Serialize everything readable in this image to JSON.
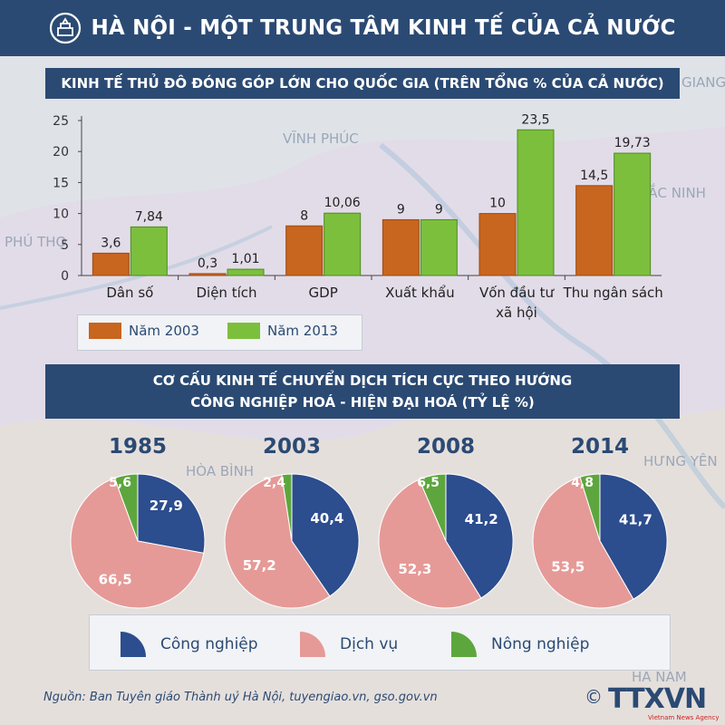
{
  "header": {
    "title": "HÀ NỘI - MỘT TRUNG TÂM KINH TẾ CỦA CẢ NƯỚC",
    "logo_icon": "hanoi-emblem-icon"
  },
  "colors": {
    "header_bg": "#2b4a73",
    "series_2003": "#c8651e",
    "series_2013": "#7cbf3d",
    "cong_nghiep": "#2c4d8e",
    "dich_vu": "#e59a97",
    "nong_nghiep": "#5da63e"
  },
  "map_labels": [
    "VĨNH PHÚC",
    "BẮC NINH",
    "PHÚ THỌ",
    "HÒA BÌNH",
    "HƯNG YÊN",
    "HÀ NAM",
    "GIANG"
  ],
  "chart_data": [
    {
      "type": "bar",
      "title": "KINH TẾ THỦ ĐÔ ĐÓNG GÓP LỚN CHO QUỐC GIA (TRÊN TỔNG % CỦA CẢ NƯỚC)",
      "categories": [
        "Dân số",
        "Diện tích",
        "GDP",
        "Xuất khẩu",
        "Vốn đầu tư xã hội",
        "Thu ngân sách"
      ],
      "series": [
        {
          "name": "Năm 2003",
          "values": [
            3.6,
            0.3,
            8,
            9,
            10,
            14.5
          ],
          "labels": [
            "3,6",
            "0,3",
            "8",
            "9",
            "10",
            "14,5"
          ]
        },
        {
          "name": "Năm 2013",
          "values": [
            7.84,
            1.01,
            10.06,
            9,
            23.5,
            19.73
          ],
          "labels": [
            "7,84",
            "1,01",
            "10,06",
            "9",
            "23,5",
            "19,73"
          ]
        }
      ],
      "ylim": [
        0,
        25
      ],
      "yticks": [
        0,
        5,
        10,
        15,
        20,
        25
      ],
      "legend_position": "bottom-left"
    },
    {
      "type": "pie",
      "title_line1": "CƠ CẤU KINH TẾ CHUYỂN DỊCH TÍCH CỰC THEO HƯỚNG",
      "title_line2": "CÔNG NGHIỆP HOÁ - HIỆN ĐẠI HOÁ (TỶ LỆ %)",
      "categories": [
        "Công nghiệp",
        "Dịch vụ",
        "Nông nghiệp"
      ],
      "pies": [
        {
          "year": "1985",
          "values": [
            27.9,
            66.5,
            5.6
          ],
          "labels": [
            "27,9",
            "66,5",
            "5,6"
          ]
        },
        {
          "year": "2003",
          "values": [
            40.4,
            57.2,
            2.4
          ],
          "labels": [
            "40,4",
            "57,2",
            "2,4"
          ]
        },
        {
          "year": "2008",
          "values": [
            41.2,
            52.3,
            6.5
          ],
          "labels": [
            "41,2",
            "52,3",
            "6,5"
          ]
        },
        {
          "year": "2014",
          "values": [
            41.7,
            53.5,
            4.8
          ],
          "labels": [
            "41,7",
            "53,5",
            "4,8"
          ]
        }
      ],
      "legend_position": "bottom"
    }
  ],
  "footer": {
    "source": "Nguồn: Ban Tuyên giáo Thành uỷ Hà Nội, tuyengiao.vn, gso.gov.vn",
    "brand": "TTXVN",
    "brand_copyright": "©",
    "brand_tagline": "Vietnam News Agency"
  }
}
